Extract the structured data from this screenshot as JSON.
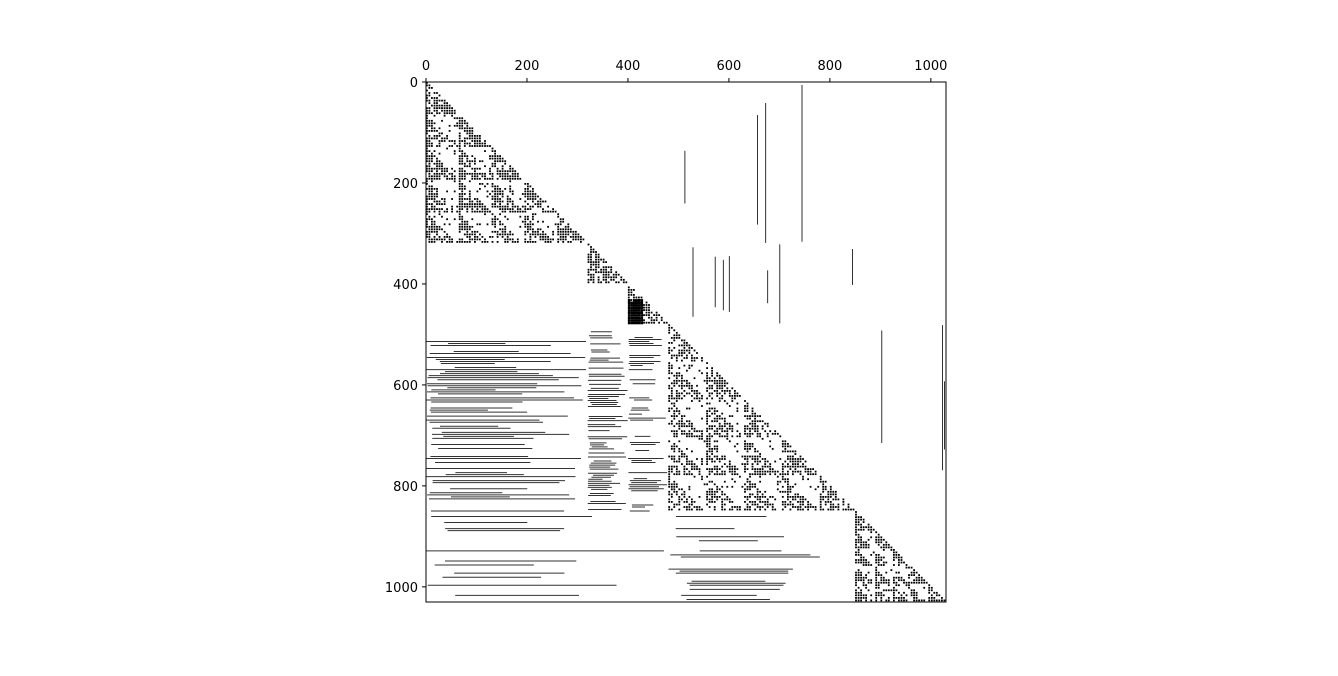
{
  "chart_data": {
    "type": "heatmap",
    "subtype": "sparsity-pattern (spy plot)",
    "colors": {
      "nonzero": "#000000",
      "background": "#ffffff"
    },
    "matrix_size": 1030,
    "x_axis_position": "top",
    "xlim": [
      0,
      1030
    ],
    "ylim": [
      1030,
      0
    ],
    "x_ticks": [
      "0",
      "200",
      "400",
      "600",
      "800",
      "1000"
    ],
    "y_ticks": [
      "0",
      "200",
      "400",
      "600",
      "800",
      "1000"
    ],
    "x_tick_values": [
      0,
      200,
      400,
      600,
      800,
      1000
    ],
    "y_tick_values": [
      0,
      200,
      400,
      600,
      800,
      1000
    ],
    "grid": false,
    "blocks": [
      {
        "kind": "lower-triangle-pattern",
        "rows": [
          0,
          320
        ],
        "cols": [
          0,
          320
        ],
        "period": 64,
        "density": 0.7
      },
      {
        "kind": "lower-triangle-pattern",
        "rows": [
          320,
          400
        ],
        "cols": [
          320,
          400
        ],
        "period": 80,
        "density": 0.75
      },
      {
        "kind": "lower-triangle-pattern",
        "rows": [
          400,
          480
        ],
        "cols": [
          400,
          480
        ],
        "period": 80,
        "density": 0.75
      },
      {
        "kind": "dense-block",
        "rows": [
          430,
          480
        ],
        "cols": [
          400,
          430
        ],
        "density": 0.95
      },
      {
        "kind": "lower-triangle-pattern",
        "rows": [
          480,
          850
        ],
        "cols": [
          480,
          850
        ],
        "period": 74,
        "density": 0.6
      },
      {
        "kind": "lower-triangle-pattern",
        "rows": [
          850,
          1030
        ],
        "cols": [
          850,
          1030
        ],
        "period": 36,
        "density": 0.8
      },
      {
        "kind": "horizontal-stripes",
        "rows": [
          505,
          850
        ],
        "cols": [
          0,
          320
        ],
        "density": 0.55
      },
      {
        "kind": "horizontal-stripes",
        "rows": [
          490,
          850
        ],
        "cols": [
          320,
          400
        ],
        "density": 0.55
      },
      {
        "kind": "horizontal-stripes",
        "rows": [
          505,
          850
        ],
        "cols": [
          400,
          480
        ],
        "density": 0.45
      },
      {
        "kind": "horizontal-stripes",
        "rows": [
          860,
          1030
        ],
        "cols": [
          0,
          480
        ],
        "density": 0.2
      },
      {
        "kind": "horizontal-stripes",
        "rows": [
          860,
          1030
        ],
        "cols": [
          480,
          850
        ],
        "density": 0.3
      },
      {
        "kind": "vertical-stripes",
        "rows": [
          0,
          320
        ],
        "cols": [
          500,
          850
        ],
        "density": 0.06
      },
      {
        "kind": "vertical-stripes",
        "rows": [
          320,
          480
        ],
        "cols": [
          480,
          850
        ],
        "density": 0.04
      },
      {
        "kind": "vertical-stripes",
        "rows": [
          480,
          850
        ],
        "cols": [
          850,
          1030
        ],
        "density": 0.07
      }
    ]
  }
}
